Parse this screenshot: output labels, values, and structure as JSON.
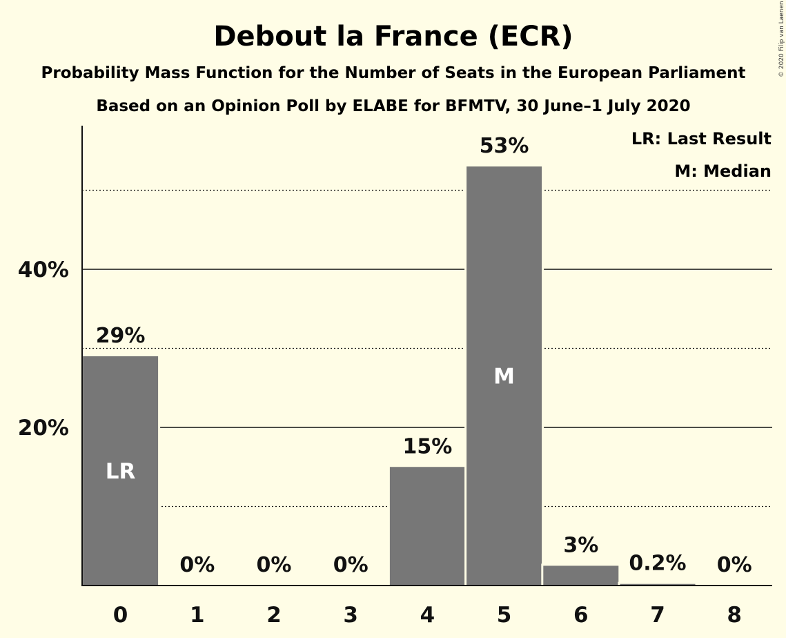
{
  "colors": {
    "background": "#fffde6",
    "bar": "#777777",
    "text": "#111111",
    "inbar_text": "#ffffff"
  },
  "chart_data": {
    "type": "bar",
    "title": "Debout la France (ECR)",
    "subtitle": "Probability Mass Function for the Number of Seats in the European Parliament",
    "subtitle2": "Based on an Opinion Poll by ELABE for BFMTV, 30 June–1 July 2020",
    "categories": [
      "0",
      "1",
      "2",
      "3",
      "4",
      "5",
      "6",
      "7",
      "8"
    ],
    "values": [
      29,
      0,
      0,
      0,
      15,
      53,
      2.5,
      0.2,
      0
    ],
    "data_labels": [
      "29%",
      "0%",
      "0%",
      "0%",
      "15%",
      "53%",
      "3%",
      "0.2%",
      "0%"
    ],
    "bar_markers": [
      "LR",
      "",
      "",
      "",
      "",
      "M",
      "",
      "",
      ""
    ],
    "yticks": [
      {
        "value": 20,
        "label": "20%"
      },
      {
        "value": 40,
        "label": "40%"
      }
    ],
    "minor_gridlines": [
      10,
      30,
      50
    ],
    "ylim": [
      0,
      58
    ],
    "grid": true,
    "legend": {
      "placement": "top-right",
      "entries": [
        "LR: Last Result",
        "M: Median"
      ]
    },
    "copyright": "© 2020 Filip van Laenen"
  }
}
